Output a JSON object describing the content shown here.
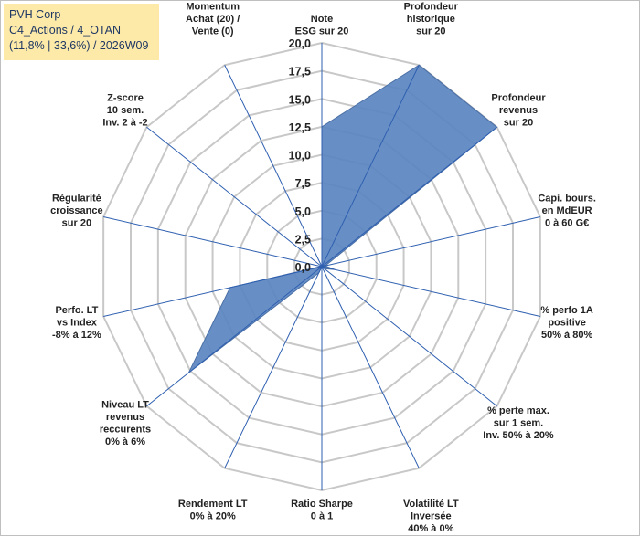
{
  "header": {
    "company": "PVH Corp",
    "category": "C4_Actions / 4_OTAN",
    "stats": "(11,8% | 33,6%) / 2026W09"
  },
  "chart_data": {
    "type": "radar",
    "rmin": 0,
    "rmax": 20,
    "ticks": [
      "0,0",
      "2,5",
      "5,0",
      "7,5",
      "10,0",
      "12,5",
      "15,0",
      "17,5",
      "20,0"
    ],
    "axes": [
      {
        "label": [
          "Note",
          "ESG sur 20"
        ],
        "value": 12.5
      },
      {
        "label": [
          "Profondeur",
          "historique",
          "sur 20"
        ],
        "value": 20
      },
      {
        "label": [
          "Profondeur",
          "revenus",
          "sur 20"
        ],
        "value": 20
      },
      {
        "label": [
          "Capi. bours.",
          "en MdEUR",
          "0 à 60 G€"
        ],
        "value": 0.3
      },
      {
        "label": [
          "% perfo 1A",
          "positive",
          "50% à 80%"
        ],
        "value": 1.2
      },
      {
        "label": [
          "% perte max.",
          "sur 1 sem.",
          "Inv. 50% à 20%"
        ],
        "value": 0.3
      },
      {
        "label": [
          "Volatilité LT",
          "Inversée",
          "40% à 0%"
        ],
        "value": 0
      },
      {
        "label": [
          "Ratio Sharpe",
          "0 à 1"
        ],
        "value": 0
      },
      {
        "label": [
          "Rendement LT",
          "0% à 20%"
        ],
        "value": 0.6
      },
      {
        "label": [
          "Niveau LT",
          "revenus",
          "reccurents",
          "0% à 6%"
        ],
        "value": 15.2
      },
      {
        "label": [
          "Perfo. LT",
          "vs Index",
          "-8% à 12%"
        ],
        "value": 8.4
      },
      {
        "label": [
          "Régularité",
          "croissance",
          "sur 20"
        ],
        "value": 0.1
      },
      {
        "label": [
          "Z-score",
          "10 sem.",
          "Inv. 2 à -2"
        ],
        "value": 0
      },
      {
        "label": [
          "Momentum",
          "Achat (20) /",
          "Vente (0)"
        ],
        "value": 0
      }
    ],
    "series": [
      {
        "color": "#4a6fa5",
        "fill": "#5b86c0"
      }
    ],
    "grid": true
  }
}
